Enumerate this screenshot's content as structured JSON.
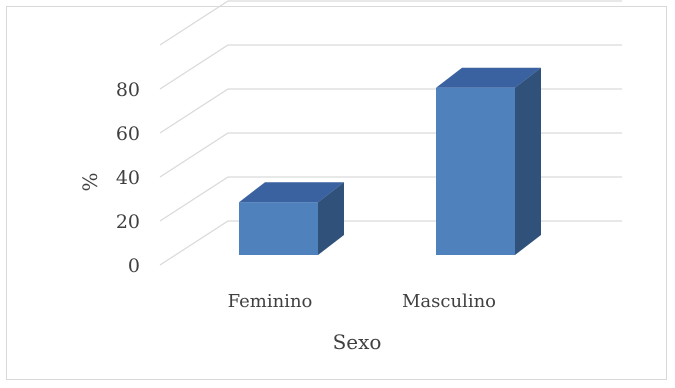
{
  "chart_data": {
    "type": "bar",
    "style": "3d-column",
    "title": "",
    "xlabel": "Sexo",
    "ylabel": "%",
    "categories": [
      "Feminino",
      "Masculino"
    ],
    "values": [
      24,
      76
    ],
    "ylim": [
      0,
      100
    ],
    "yticks": [
      0,
      20,
      40,
      60,
      80
    ],
    "grid": true,
    "legend": "none",
    "colors": {
      "front": "#4f81bd",
      "side": "#30527a",
      "top": "#3a62a0",
      "grid": "#d9d9d9",
      "text": "#404040"
    }
  }
}
